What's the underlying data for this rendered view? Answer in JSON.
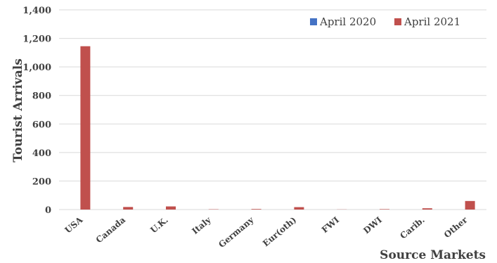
{
  "chart_data": {
    "type": "bar",
    "categories": [
      "USA",
      "Canada",
      "U.K.",
      "Italy",
      "Germany",
      "Eur(oth)",
      "FWI",
      "DWI",
      "Carib.",
      "Other"
    ],
    "series": [
      {
        "name": "April 2020",
        "color": "#4472C4",
        "values": [
          0,
          0,
          0,
          0,
          0,
          0,
          0,
          0,
          0,
          0
        ]
      },
      {
        "name": "April 2021",
        "color": "#C0504D",
        "values": [
          1145,
          18,
          22,
          2,
          4,
          17,
          1,
          3,
          9,
          60
        ]
      }
    ],
    "title": "",
    "xlabel": "Source Markets",
    "ylabel": "Tourist Arrivals",
    "ylim": [
      0,
      1400
    ],
    "yticks": [
      "0",
      "200",
      "400",
      "600",
      "800",
      "1,000",
      "1,200",
      "1,400"
    ],
    "grid": true,
    "legend": "top-right"
  }
}
